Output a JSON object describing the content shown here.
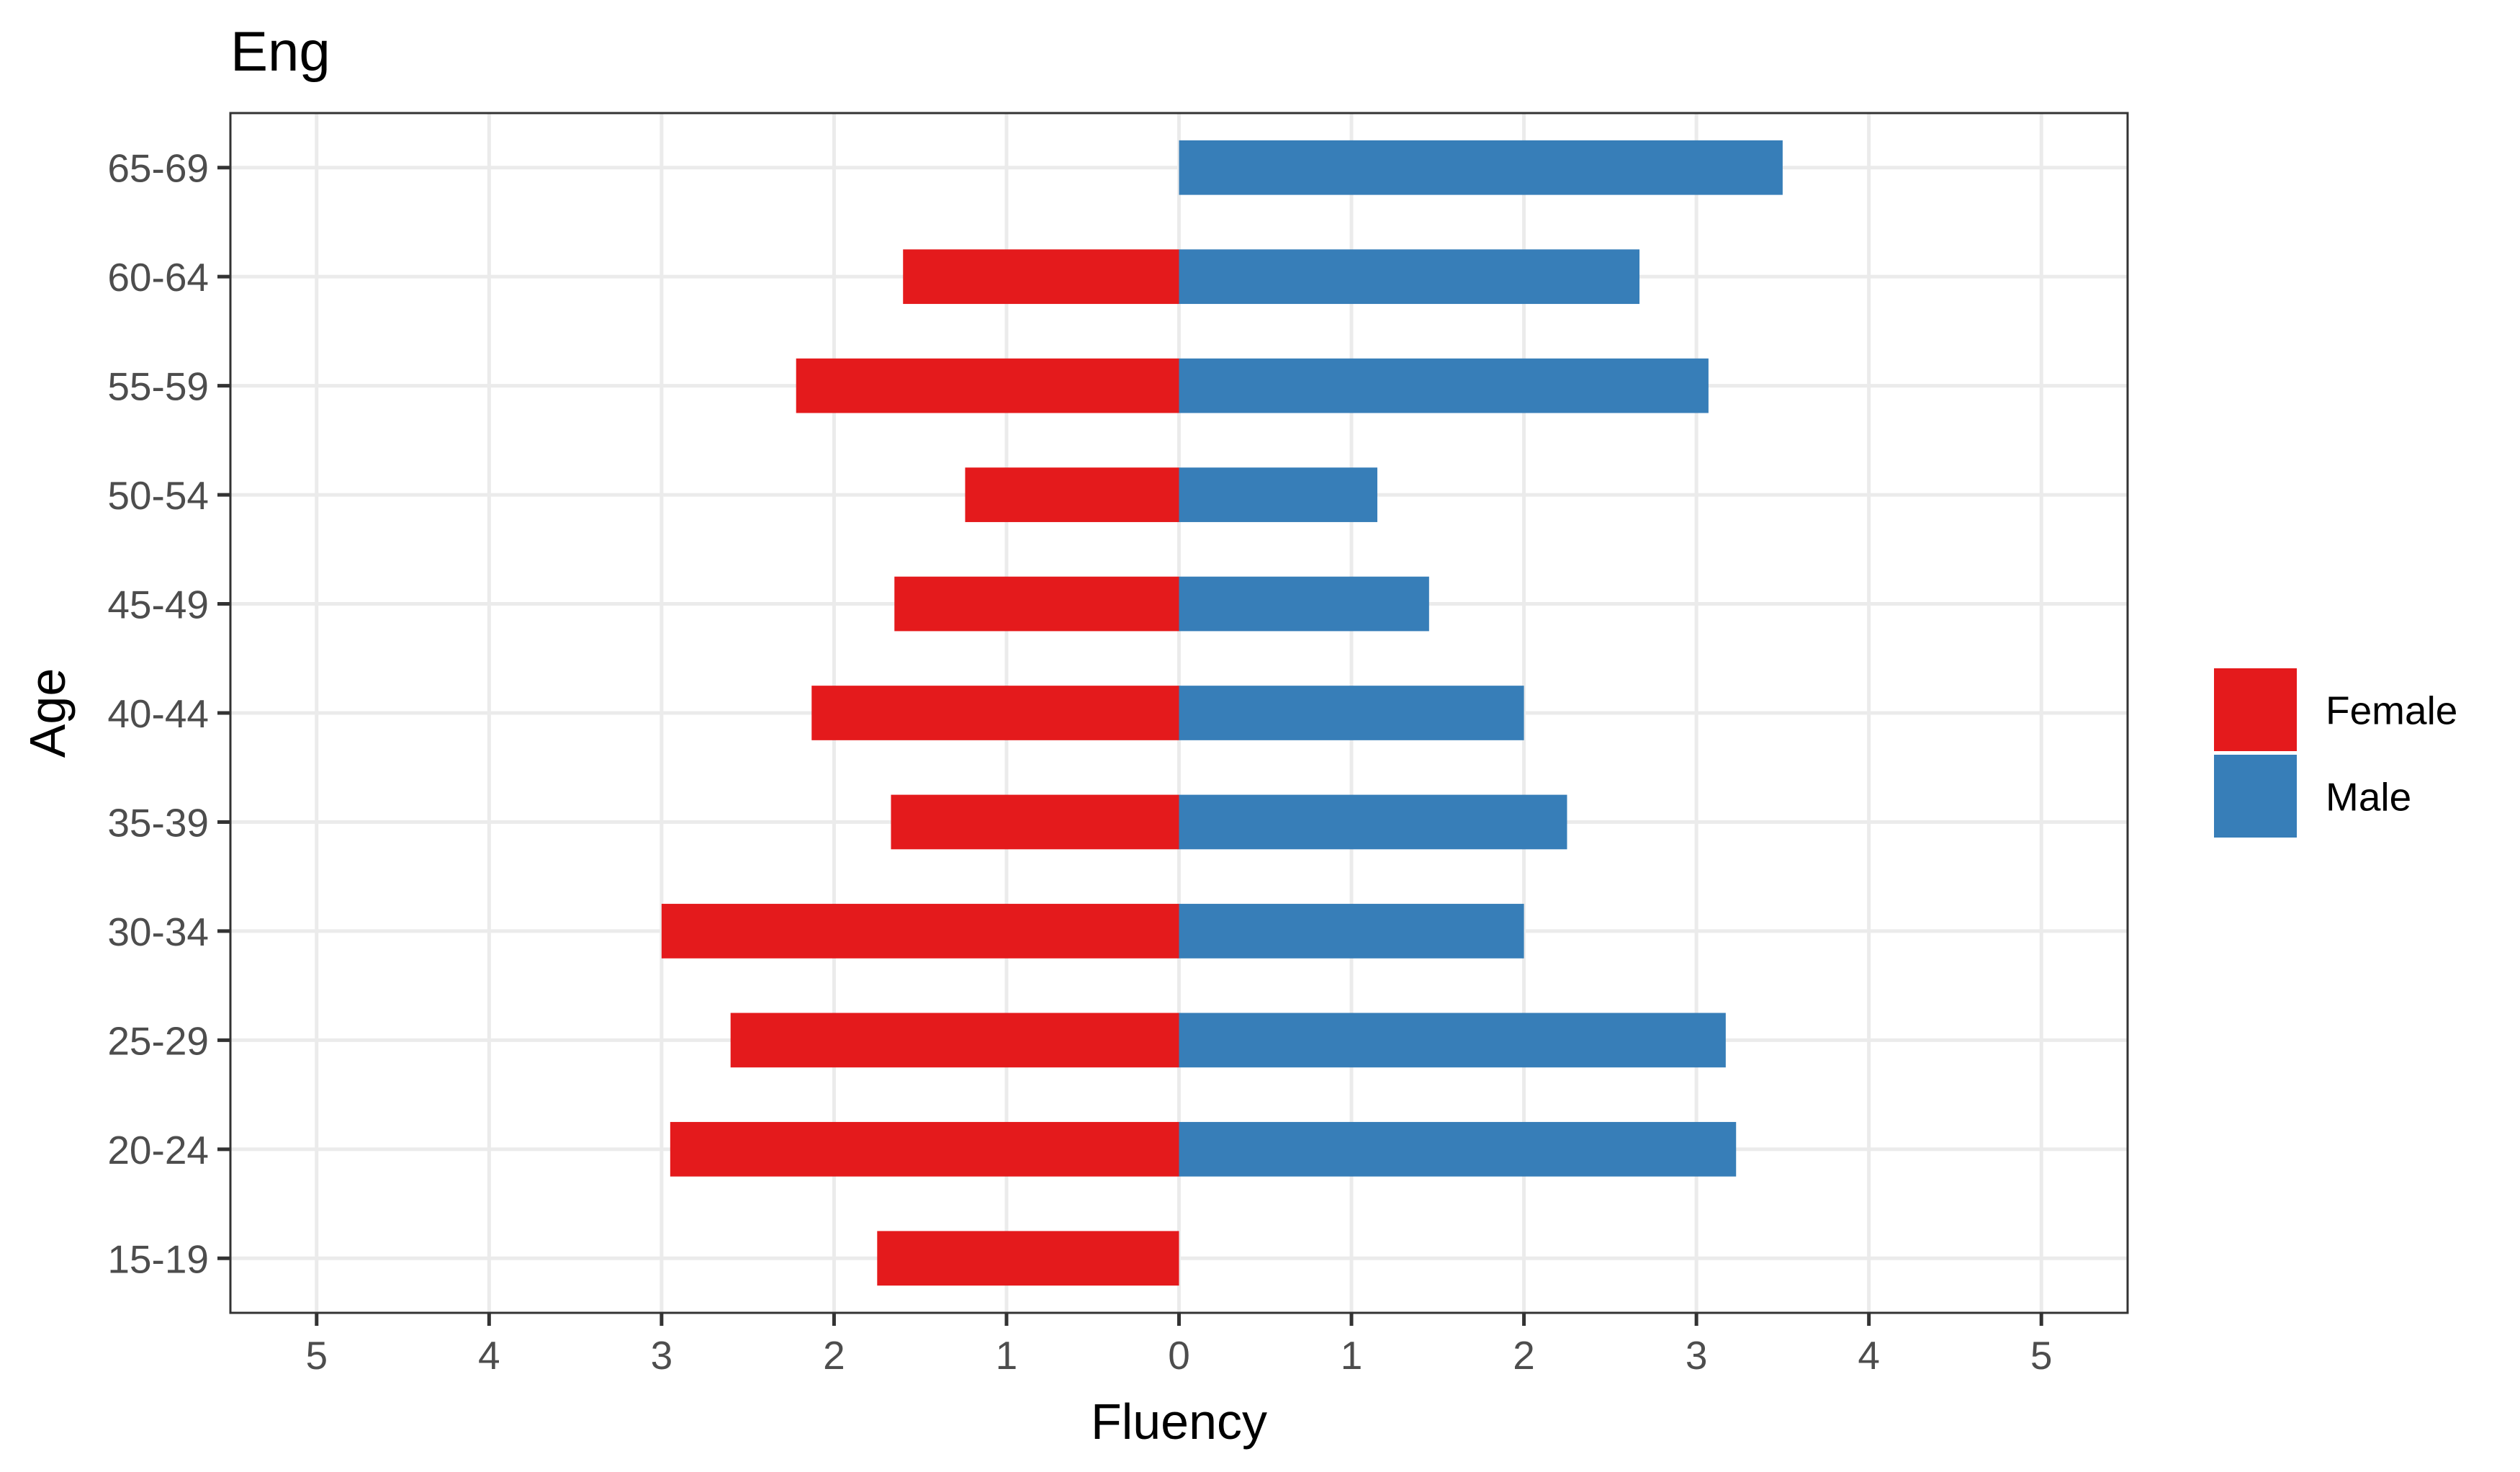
{
  "chart_data": {
    "type": "bar",
    "orientation": "horizontal",
    "title": "Eng",
    "xlabel": "Fluency",
    "ylabel": "Age",
    "categories": [
      "15-19",
      "20-24",
      "25-29",
      "30-34",
      "35-39",
      "40-44",
      "45-49",
      "50-54",
      "55-59",
      "60-64",
      "65-69"
    ],
    "series": [
      {
        "name": "Female",
        "color": "#e41a1c",
        "values": [
          1.75,
          2.95,
          2.6,
          3.0,
          1.67,
          2.13,
          1.65,
          1.24,
          2.22,
          1.6,
          null
        ]
      },
      {
        "name": "Male",
        "color": "#377eb8",
        "values": [
          null,
          3.23,
          3.17,
          2.0,
          2.25,
          2.0,
          1.45,
          1.15,
          3.07,
          2.67,
          3.5
        ]
      }
    ],
    "xlim": [
      -5.5,
      5.5
    ],
    "x_ticks": [
      -5,
      -4,
      -3,
      -2,
      -1,
      0,
      1,
      2,
      3,
      4,
      5
    ],
    "x_tick_labels": [
      "5",
      "4",
      "3",
      "2",
      "1",
      "0",
      "1",
      "2",
      "3",
      "4",
      "5"
    ],
    "grid": true,
    "legend_position": "right"
  }
}
